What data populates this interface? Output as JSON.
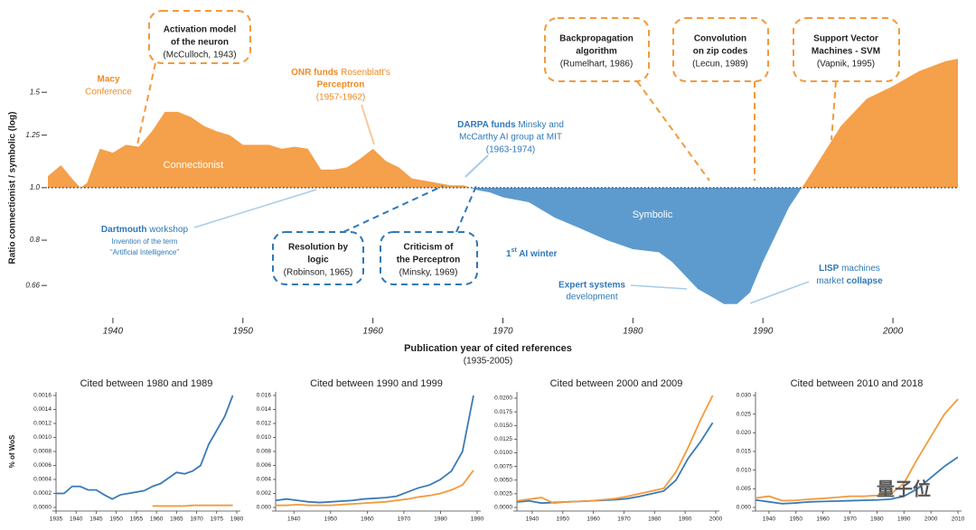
{
  "chart_data": [
    {
      "type": "area",
      "log_scale": true,
      "baseline": 1,
      "y_label": "Ratio connectionist / symbolic (log)",
      "x_label": "Publication year of cited references",
      "x_sublabel": "(1935-2005)",
      "color_above": "#f5a04a",
      "color_below": "#5d9bcf",
      "area_labels": [
        "Connectionist",
        "Symbolic"
      ],
      "x": [
        1935,
        1936,
        1937,
        1937.5,
        1938,
        1939,
        1940,
        1941,
        1942,
        1943,
        1944,
        1945,
        1946,
        1947,
        1948,
        1949,
        1950,
        1951,
        1952,
        1953,
        1954,
        1955,
        1956,
        1957,
        1958,
        1959,
        1960,
        1961,
        1962,
        1963,
        1964,
        1965,
        1966,
        1967,
        1968,
        1969,
        1970,
        1972,
        1974,
        1976,
        1978,
        1980,
        1982,
        1983,
        1985,
        1986,
        1987,
        1988,
        1989,
        1990,
        1992,
        1993,
        1994,
        1996,
        1998,
        2000,
        2002,
        2004,
        2005
      ],
      "values": [
        1.05,
        1.1,
        1.03,
        1.0,
        1.02,
        1.18,
        1.16,
        1.2,
        1.19,
        1.27,
        1.38,
        1.38,
        1.35,
        1.3,
        1.27,
        1.25,
        1.2,
        1.2,
        1.2,
        1.18,
        1.19,
        1.18,
        1.08,
        1.08,
        1.09,
        1.13,
        1.18,
        1.12,
        1.09,
        1.04,
        1.03,
        1.02,
        1.01,
        1.01,
        0.99,
        0.98,
        0.96,
        0.94,
        0.88,
        0.84,
        0.8,
        0.77,
        0.76,
        0.73,
        0.65,
        0.63,
        0.61,
        0.61,
        0.64,
        0.73,
        0.92,
        1.0,
        1.09,
        1.3,
        1.46,
        1.54,
        1.64,
        1.71,
        1.73
      ],
      "xlim": [
        1935,
        2005
      ],
      "ylim": [
        0.6,
        1.75
      ],
      "xticks": [
        1940,
        1950,
        1960,
        1970,
        1980,
        1990,
        2000
      ],
      "yticks": [
        0.66,
        0.8,
        {
          "value": 1,
          "label": "1.0"
        },
        1.25,
        1.5
      ]
    },
    {
      "type": "line",
      "title": "Cited between 1980 and 1989",
      "y_label": "% of WoS",
      "x": [
        1935,
        1937,
        1939,
        1941,
        1943,
        1945,
        1947,
        1949,
        1951,
        1953,
        1955,
        1957,
        1959,
        1961,
        1963,
        1965,
        1967,
        1969,
        1971,
        1973,
        1975,
        1977,
        1979
      ],
      "series": [
        {
          "color": "#3a7ab8",
          "values": [
            0.0002,
            0.0002,
            0.0003,
            0.0003,
            0.00025,
            0.00025,
            0.00018,
            0.00012,
            0.00018,
            0.0002,
            0.00022,
            0.00024,
            0.0003,
            0.00034,
            0.00042,
            0.0005,
            0.00048,
            0.00052,
            0.0006,
            0.0009,
            0.0011,
            0.0013,
            0.0016
          ]
        },
        {
          "color": "#f39a3c",
          "values": [
            null,
            null,
            null,
            null,
            null,
            null,
            null,
            null,
            null,
            null,
            null,
            null,
            2e-05,
            2e-05,
            2e-05,
            2e-05,
            2e-05,
            3e-05,
            3e-05,
            3e-05,
            3e-05,
            3e-05,
            3e-05
          ]
        }
      ],
      "xlim": [
        1935,
        1980
      ],
      "ylim": [
        0,
        0.0016
      ],
      "xticks": [
        1935,
        1940,
        1945,
        1950,
        1955,
        1960,
        1965,
        1970,
        1975,
        1980
      ],
      "yticks": [
        {
          "value": 0,
          "label": "0.0000"
        },
        {
          "value": 0.0002,
          "label": "0.0002"
        },
        {
          "value": 0.0004,
          "label": "0.0004"
        },
        {
          "value": 0.0006,
          "label": "0.0006"
        },
        {
          "value": 0.0008,
          "label": "0.0008"
        },
        {
          "value": 0.001,
          "label": "0.0010"
        },
        {
          "value": 0.0012,
          "label": "0.0012"
        },
        {
          "value": 0.0014,
          "label": "0.0014"
        },
        {
          "value": 0.0016,
          "label": "0.0016"
        }
      ]
    },
    {
      "type": "line",
      "title": "Cited between 1990 and 1999",
      "x": [
        1935,
        1938,
        1941,
        1944,
        1947,
        1950,
        1953,
        1956,
        1959,
        1962,
        1965,
        1968,
        1971,
        1974,
        1977,
        1980,
        1983,
        1986,
        1989
      ],
      "series": [
        {
          "color": "#3a7ab8",
          "values": [
            0.001,
            0.0012,
            0.001,
            0.0008,
            0.0007,
            0.0008,
            0.0009,
            0.001,
            0.0012,
            0.0013,
            0.0014,
            0.0016,
            0.0022,
            0.0028,
            0.0032,
            0.004,
            0.0052,
            0.008,
            0.016
          ]
        },
        {
          "color": "#f39a3c",
          "values": [
            0.0003,
            0.0003,
            0.0004,
            0.0003,
            0.0003,
            0.0003,
            0.0004,
            0.0005,
            0.0006,
            0.0007,
            0.0008,
            0.001,
            0.0012,
            0.0015,
            0.0017,
            0.002,
            0.0025,
            0.0032,
            0.0053
          ]
        }
      ],
      "xlim": [
        1935,
        1990
      ],
      "ylim": [
        0,
        0.016
      ],
      "xticks": [
        1940,
        1950,
        1960,
        1970,
        1980,
        1990
      ],
      "yticks": [
        {
          "value": 0,
          "label": "0.000"
        },
        {
          "value": 0.002,
          "label": "0.002"
        },
        {
          "value": 0.004,
          "label": "0.004"
        },
        {
          "value": 0.006,
          "label": "0.006"
        },
        {
          "value": 0.008,
          "label": "0.008"
        },
        {
          "value": 0.01,
          "label": "0.010"
        },
        {
          "value": 0.012,
          "label": "0.012"
        },
        {
          "value": 0.014,
          "label": "0.014"
        },
        {
          "value": 0.016,
          "label": "0.016"
        }
      ]
    },
    {
      "type": "line",
      "title": "Cited between 2000 and 2009",
      "x": [
        1935,
        1939,
        1943,
        1947,
        1951,
        1955,
        1959,
        1963,
        1967,
        1971,
        1975,
        1979,
        1983,
        1987,
        1991,
        1995,
        1999
      ],
      "series": [
        {
          "color": "#3a7ab8",
          "values": [
            0.001,
            0.0012,
            0.0008,
            0.0009,
            0.001,
            0.0011,
            0.0012,
            0.0013,
            0.0014,
            0.0016,
            0.002,
            0.0025,
            0.003,
            0.005,
            0.009,
            0.012,
            0.0155
          ]
        },
        {
          "color": "#f39a3c",
          "values": [
            0.0012,
            0.0015,
            0.0018,
            0.0008,
            0.001,
            0.0011,
            0.0012,
            0.0014,
            0.0016,
            0.002,
            0.0025,
            0.003,
            0.0035,
            0.0065,
            0.011,
            0.016,
            0.0205
          ]
        }
      ],
      "xlim": [
        1935,
        2000
      ],
      "ylim": [
        0,
        0.0205
      ],
      "xticks": [
        1940,
        1950,
        1960,
        1970,
        1980,
        1990,
        2000
      ],
      "yticks": [
        {
          "value": 0,
          "label": "0.0000"
        },
        {
          "value": 0.0025,
          "label": "0.0025"
        },
        {
          "value": 0.005,
          "label": "0.0050"
        },
        {
          "value": 0.0075,
          "label": "0.0075"
        },
        {
          "value": 0.01,
          "label": "0.0100"
        },
        {
          "value": 0.0125,
          "label": "0.0125"
        },
        {
          "value": 0.015,
          "label": "0.0150"
        },
        {
          "value": 0.0175,
          "label": "0.0175"
        },
        {
          "value": 0.02,
          "label": "0.0200"
        }
      ]
    },
    {
      "type": "line",
      "title": "Cited between 2010 and 2018",
      "x": [
        1935,
        1940,
        1945,
        1950,
        1955,
        1960,
        1965,
        1970,
        1975,
        1980,
        1985,
        1990,
        1995,
        2000,
        2005,
        2010
      ],
      "series": [
        {
          "color": "#3a7ab8",
          "values": [
            0.002,
            0.0015,
            0.001,
            0.0012,
            0.0015,
            0.0016,
            0.0017,
            0.0018,
            0.0019,
            0.002,
            0.0022,
            0.003,
            0.005,
            0.008,
            0.011,
            0.0135
          ]
        },
        {
          "color": "#f39a3c",
          "values": [
            0.0025,
            0.003,
            0.0018,
            0.0019,
            0.0022,
            0.0024,
            0.0027,
            0.003,
            0.003,
            0.0032,
            0.0035,
            0.0065,
            0.013,
            0.019,
            0.025,
            0.029
          ]
        }
      ],
      "xlim": [
        1935,
        2010
      ],
      "ylim": [
        0,
        0.03
      ],
      "xticks": [
        1940,
        1950,
        1960,
        1970,
        1980,
        1990,
        2000,
        2010
      ],
      "yticks": [
        {
          "value": 0,
          "label": "0.000"
        },
        {
          "value": 0.005,
          "label": "0.005"
        },
        {
          "value": 0.01,
          "label": "0.010"
        },
        {
          "value": 0.015,
          "label": "0.015"
        },
        {
          "value": 0.02,
          "label": "0.020"
        },
        {
          "value": 0.025,
          "label": "0.025"
        },
        {
          "value": 0.03,
          "label": "0.030"
        }
      ]
    }
  ],
  "annotations": {
    "activation": [
      "Activation model",
      "of the neuron",
      "(McCulloch, 1943)"
    ],
    "macy": [
      "Macy",
      "Conference"
    ],
    "onr": [
      "ONR funds",
      " Rosenblatt's",
      "Perceptron",
      "(1957-1962)"
    ],
    "darpa": [
      "DARPA funds",
      " Minsky and",
      "McCarthy AI group at MIT",
      "(1963-1974)"
    ],
    "dartmouth": [
      "Dartmouth",
      " workshop",
      "Invention of the term",
      "“Artificial Intelligence”"
    ],
    "resolution": [
      "Resolution by",
      "logic",
      "(Robinson, 1965)"
    ],
    "criticism": [
      "Criticism of",
      "the Perceptron",
      "(Minsky, 1969)"
    ],
    "winter": [
      "1",
      "st",
      " AI winter"
    ],
    "expert": [
      "Expert systems",
      "development"
    ],
    "lisp": [
      "LISP",
      " machines",
      "market ",
      "collapse"
    ],
    "backprop": [
      "Backpropagation",
      "algorithm",
      "(Rumelhart, 1986)"
    ],
    "convolution": [
      "Convolution",
      "on zip codes",
      "(Lecun, 1989)"
    ],
    "svm": [
      "Support Vector",
      "Machines - SVM",
      "(Vapnik, 1995)"
    ]
  },
  "watermark": "量子位"
}
